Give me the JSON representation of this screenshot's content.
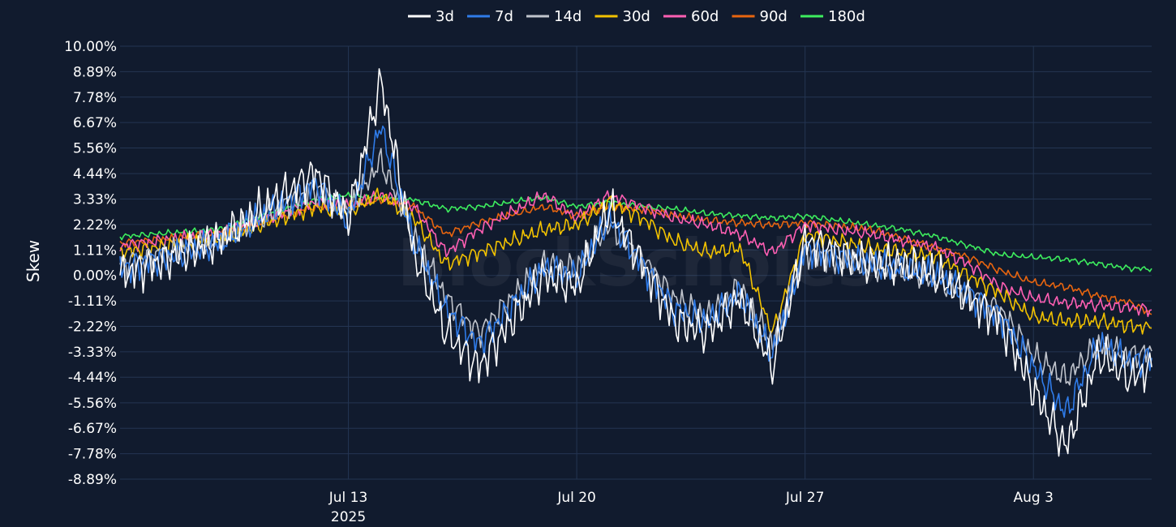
{
  "chart_data": {
    "type": "line",
    "ylabel": "Skew",
    "y_ticks": [
      "10.00%",
      "8.89%",
      "7.78%",
      "6.67%",
      "5.56%",
      "4.44%",
      "3.33%",
      "2.22%",
      "1.11%",
      "0.00%",
      "-1.11%",
      "-2.22%",
      "-3.33%",
      "-4.44%",
      "-5.56%",
      "-6.67%",
      "-7.78%",
      "-8.89%"
    ],
    "ylim": [
      -8.89,
      10.0
    ],
    "x_ticks": [
      {
        "label": "Jul 13",
        "sublabel": "2025",
        "date": "2025-07-13"
      },
      {
        "label": "Jul 20",
        "sublabel": "",
        "date": "2025-07-20"
      },
      {
        "label": "Jul 27",
        "sublabel": "",
        "date": "2025-07-27"
      },
      {
        "label": "Aug 3",
        "sublabel": "",
        "date": "2025-08-03"
      }
    ],
    "xlim": [
      "2025-07-06",
      "2025-08-06T15:00"
    ],
    "grid": true,
    "legend_position": "top",
    "watermark": "BlockScholes",
    "series": [
      {
        "name": "3d",
        "color": "#ffffff",
        "x": [
          "2025-07-06",
          "2025-07-09",
          "2025-07-12",
          "2025-07-13",
          "2025-07-14",
          "2025-07-15",
          "2025-07-16",
          "2025-07-17",
          "2025-07-19",
          "2025-07-20",
          "2025-07-21",
          "2025-07-22",
          "2025-07-23",
          "2025-07-24",
          "2025-07-25",
          "2025-07-26",
          "2025-07-27",
          "2025-07-29",
          "2025-07-30",
          "2025-07-31",
          "2025-08-01",
          "2025-08-02",
          "2025-08-03",
          "2025-08-04",
          "2025-08-05",
          "2025-08-06",
          "2025-08-06T15:00"
        ],
        "values": [
          0.0,
          1.5,
          4.5,
          2.5,
          8.5,
          1.0,
          -2.5,
          -4.0,
          0.0,
          -0.5,
          3.0,
          0.5,
          -2.0,
          -2.5,
          -1.0,
          -4.0,
          1.5,
          0.5,
          0.5,
          0.0,
          -1.0,
          -2.0,
          -5.0,
          -7.5,
          -3.5,
          -4.5,
          -4.0
        ]
      },
      {
        "name": "7d",
        "color": "#2f7be8",
        "x": [
          "2025-07-06",
          "2025-07-09",
          "2025-07-12",
          "2025-07-13",
          "2025-07-14",
          "2025-07-15",
          "2025-07-16",
          "2025-07-17",
          "2025-07-19",
          "2025-07-20",
          "2025-07-21",
          "2025-07-22",
          "2025-07-23",
          "2025-07-24",
          "2025-07-25",
          "2025-07-26",
          "2025-07-27",
          "2025-07-29",
          "2025-07-30",
          "2025-07-31",
          "2025-08-01",
          "2025-08-02",
          "2025-08-03",
          "2025-08-04",
          "2025-08-05",
          "2025-08-06",
          "2025-08-06T15:00"
        ],
        "values": [
          0.3,
          1.4,
          4.0,
          2.5,
          6.5,
          1.5,
          -1.5,
          -3.0,
          0.3,
          0.0,
          2.5,
          0.5,
          -1.5,
          -2.0,
          -0.8,
          -3.5,
          1.2,
          0.5,
          0.3,
          0.0,
          -0.8,
          -1.8,
          -4.0,
          -6.0,
          -3.0,
          -3.8,
          -3.6
        ]
      },
      {
        "name": "14d",
        "color": "#c0c4cc",
        "x": [
          "2025-07-06",
          "2025-07-09",
          "2025-07-12",
          "2025-07-13",
          "2025-07-14",
          "2025-07-15",
          "2025-07-16",
          "2025-07-17",
          "2025-07-19",
          "2025-07-20",
          "2025-07-21",
          "2025-07-22",
          "2025-07-23",
          "2025-07-24",
          "2025-07-25",
          "2025-07-26",
          "2025-07-27",
          "2025-07-29",
          "2025-07-30",
          "2025-07-31",
          "2025-08-01",
          "2025-08-02",
          "2025-08-03",
          "2025-08-04",
          "2025-08-05",
          "2025-08-06",
          "2025-08-06T15:00"
        ],
        "values": [
          0.5,
          1.5,
          3.8,
          2.8,
          5.0,
          1.8,
          -1.0,
          -2.5,
          0.5,
          0.3,
          2.2,
          0.8,
          -1.0,
          -1.8,
          -0.5,
          -3.0,
          1.0,
          0.3,
          0.2,
          -0.2,
          -0.8,
          -1.5,
          -3.5,
          -4.5,
          -3.0,
          -3.5,
          -3.3
        ]
      },
      {
        "name": "30d",
        "color": "#f2c200",
        "x": [
          "2025-07-06",
          "2025-07-09",
          "2025-07-12",
          "2025-07-13",
          "2025-07-14",
          "2025-07-15",
          "2025-07-16",
          "2025-07-17",
          "2025-07-19",
          "2025-07-20",
          "2025-07-21",
          "2025-07-22",
          "2025-07-23",
          "2025-07-24",
          "2025-07-25",
          "2025-07-26",
          "2025-07-27",
          "2025-07-29",
          "2025-07-30",
          "2025-07-31",
          "2025-08-01",
          "2025-08-02",
          "2025-08-03",
          "2025-08-04",
          "2025-08-05",
          "2025-08-06",
          "2025-08-06T15:00"
        ],
        "values": [
          1.0,
          1.6,
          3.0,
          2.8,
          3.5,
          2.5,
          0.5,
          1.0,
          2.0,
          2.2,
          3.2,
          2.5,
          1.5,
          1.0,
          1.2,
          -2.5,
          1.8,
          1.2,
          1.0,
          0.8,
          0.0,
          -0.8,
          -1.8,
          -2.0,
          -2.0,
          -2.2,
          -2.3
        ]
      },
      {
        "name": "60d",
        "color": "#ff5fb3",
        "x": [
          "2025-07-06",
          "2025-07-09",
          "2025-07-12",
          "2025-07-13",
          "2025-07-14",
          "2025-07-15",
          "2025-07-16",
          "2025-07-17",
          "2025-07-19",
          "2025-07-20",
          "2025-07-21",
          "2025-07-22",
          "2025-07-23",
          "2025-07-24",
          "2025-07-25",
          "2025-07-26",
          "2025-07-27",
          "2025-07-29",
          "2025-07-30",
          "2025-07-31",
          "2025-08-01",
          "2025-08-02",
          "2025-08-03",
          "2025-08-04",
          "2025-08-05",
          "2025-08-06",
          "2025-08-06T15:00"
        ],
        "values": [
          1.3,
          1.8,
          3.2,
          3.0,
          3.5,
          3.0,
          1.0,
          2.0,
          3.5,
          2.5,
          3.5,
          3.0,
          2.5,
          2.2,
          1.8,
          1.0,
          2.2,
          1.8,
          1.5,
          1.2,
          0.5,
          -0.5,
          -1.0,
          -1.2,
          -1.3,
          -1.4,
          -1.5
        ]
      },
      {
        "name": "90d",
        "color": "#e8650f",
        "x": [
          "2025-07-06",
          "2025-07-09",
          "2025-07-12",
          "2025-07-13",
          "2025-07-14",
          "2025-07-15",
          "2025-07-16",
          "2025-07-17",
          "2025-07-19",
          "2025-07-20",
          "2025-07-21",
          "2025-07-22",
          "2025-07-23",
          "2025-07-24",
          "2025-07-25",
          "2025-07-26",
          "2025-07-27",
          "2025-07-29",
          "2025-07-30",
          "2025-07-31",
          "2025-08-01",
          "2025-08-02",
          "2025-08-03",
          "2025-08-04",
          "2025-08-05",
          "2025-08-06",
          "2025-08-06T15:00"
        ],
        "values": [
          1.4,
          1.8,
          3.0,
          3.0,
          3.3,
          3.0,
          1.8,
          2.3,
          3.0,
          2.6,
          3.0,
          2.9,
          2.6,
          2.4,
          2.3,
          2.2,
          2.3,
          2.0,
          1.6,
          1.2,
          0.8,
          0.2,
          -0.3,
          -0.5,
          -0.9,
          -1.2,
          -1.7
        ]
      },
      {
        "name": "180d",
        "color": "#3ded5e",
        "x": [
          "2025-07-06",
          "2025-07-09",
          "2025-07-12",
          "2025-07-13",
          "2025-07-14",
          "2025-07-15",
          "2025-07-16",
          "2025-07-17",
          "2025-07-19",
          "2025-07-20",
          "2025-07-21",
          "2025-07-22",
          "2025-07-23",
          "2025-07-24",
          "2025-07-25",
          "2025-07-26",
          "2025-07-27",
          "2025-07-29",
          "2025-07-30",
          "2025-07-31",
          "2025-08-01",
          "2025-08-02",
          "2025-08-03",
          "2025-08-04",
          "2025-08-05",
          "2025-08-06",
          "2025-08-06T15:00"
        ],
        "values": [
          1.7,
          2.0,
          3.3,
          3.5,
          3.4,
          3.3,
          2.9,
          3.0,
          3.4,
          3.0,
          3.2,
          3.0,
          2.9,
          2.7,
          2.6,
          2.5,
          2.6,
          2.2,
          2.0,
          1.7,
          1.3,
          0.9,
          0.8,
          0.7,
          0.5,
          0.3,
          0.3
        ]
      }
    ]
  }
}
